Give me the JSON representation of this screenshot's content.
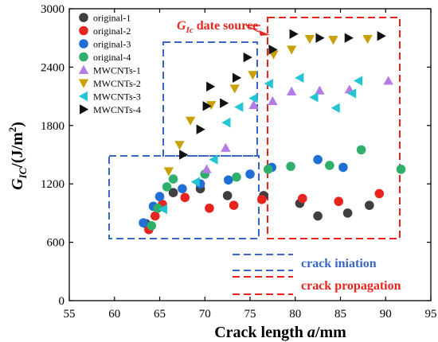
{
  "chart_data": {
    "type": "scatter",
    "xlabel_main": "Crack length ",
    "xlabel_var": "a",
    "xlabel_unit": "/mm",
    "ylabel_main": "G",
    "ylabel_sub": "IC",
    "ylabel_unit": "/(J/m",
    "ylabel_sup": "2",
    "ylabel_close": ")",
    "xlim": [
      55,
      95
    ],
    "ylim": [
      0,
      3000
    ],
    "xticks": [
      55,
      60,
      65,
      70,
      75,
      80,
      85,
      90,
      95
    ],
    "yticks": [
      0,
      600,
      1200,
      1800,
      2400,
      3000
    ],
    "grid": false,
    "legend_position": "top-left",
    "series": [
      {
        "name": "original-1",
        "marker": "circle",
        "color": "#3f3f3f",
        "points": [
          [
            63.5,
            790
          ],
          [
            66.5,
            1110
          ],
          [
            69.5,
            1150
          ],
          [
            72.5,
            1080
          ],
          [
            76.5,
            1080
          ],
          [
            80.5,
            1000
          ],
          [
            82.5,
            870
          ],
          [
            85.8,
            900
          ],
          [
            88.2,
            980
          ]
        ]
      },
      {
        "name": "original-2",
        "marker": "circle",
        "color": "#e8241f",
        "points": [
          [
            63.8,
            730
          ],
          [
            64.5,
            870
          ],
          [
            65.3,
            990
          ],
          [
            67.8,
            1060
          ],
          [
            70.5,
            950
          ],
          [
            73.2,
            980
          ],
          [
            76.3,
            1040
          ],
          [
            80.8,
            1050
          ],
          [
            84.8,
            1020
          ],
          [
            89.3,
            1100
          ]
        ]
      },
      {
        "name": "original-3",
        "marker": "circle",
        "color": "#1f6fd6",
        "points": [
          [
            63.2,
            800
          ],
          [
            64.3,
            970
          ],
          [
            65.0,
            1070
          ],
          [
            67.5,
            1150
          ],
          [
            69.5,
            1200
          ],
          [
            72.6,
            1240
          ],
          [
            75.0,
            1300
          ],
          [
            77.4,
            1370
          ],
          [
            82.5,
            1450
          ],
          [
            85.3,
            1370
          ]
        ]
      },
      {
        "name": "original-4",
        "marker": "circle",
        "color": "#2fb06a",
        "points": [
          [
            64.1,
            770
          ],
          [
            64.8,
            950
          ],
          [
            65.8,
            1170
          ],
          [
            66.5,
            1250
          ],
          [
            70.0,
            1300
          ],
          [
            73.5,
            1270
          ],
          [
            77.0,
            1350
          ],
          [
            79.5,
            1380
          ],
          [
            83.8,
            1390
          ],
          [
            87.3,
            1550
          ],
          [
            91.7,
            1350
          ]
        ]
      },
      {
        "name": "MWCNTs-1",
        "marker": "triangle-up",
        "color": "#b57be5",
        "points": [
          [
            70.2,
            1350
          ],
          [
            72.3,
            1570
          ],
          [
            75.4,
            2010
          ],
          [
            77.5,
            2050
          ],
          [
            79.6,
            2150
          ],
          [
            82.7,
            2160
          ],
          [
            86.0,
            2170
          ],
          [
            90.3,
            2260
          ]
        ]
      },
      {
        "name": "MWCNTs-2",
        "marker": "triangle-down",
        "color": "#c9a005",
        "points": [
          [
            66.0,
            1330
          ],
          [
            67.2,
            1600
          ],
          [
            68.4,
            1850
          ],
          [
            70.7,
            2010
          ],
          [
            73.3,
            2180
          ],
          [
            75.3,
            2320
          ],
          [
            77.6,
            2530
          ],
          [
            79.6,
            2580
          ],
          [
            81.6,
            2690
          ],
          [
            84.2,
            2680
          ],
          [
            88.0,
            2690
          ]
        ]
      },
      {
        "name": "MWCNTs-3",
        "marker": "triangle-left",
        "color": "#22c5d4",
        "points": [
          [
            65.4,
            940
          ],
          [
            69.0,
            1220
          ],
          [
            71.0,
            1450
          ],
          [
            72.4,
            1830
          ],
          [
            73.8,
            1990
          ],
          [
            75.4,
            2080
          ],
          [
            77.1,
            2230
          ],
          [
            80.5,
            2290
          ],
          [
            82.1,
            2090
          ],
          [
            84.5,
            1980
          ],
          [
            86.3,
            2130
          ],
          [
            87.0,
            2260
          ]
        ]
      },
      {
        "name": "MWCNTs-4",
        "marker": "triangle-right",
        "color": "#111111",
        "points": [
          [
            67.6,
            1500
          ],
          [
            69.5,
            1760
          ],
          [
            70.2,
            2000
          ],
          [
            70.6,
            2200
          ],
          [
            72.1,
            2030
          ],
          [
            73.5,
            2290
          ],
          [
            74.7,
            2500
          ],
          [
            77.5,
            2580
          ],
          [
            79.8,
            2740
          ],
          [
            82.7,
            2700
          ],
          [
            85.9,
            2700
          ],
          [
            89.5,
            2720
          ]
        ]
      }
    ],
    "annotations": {
      "source_label_main": "G",
      "source_label_sub": "Ic",
      "source_label_rest": " date source",
      "source_color": "#e8241f",
      "initiation_color": "#3a67c4",
      "propagation_color": "#e8241f",
      "legend_initiation": "crack iniation",
      "legend_propagation": "crack propagation"
    }
  }
}
